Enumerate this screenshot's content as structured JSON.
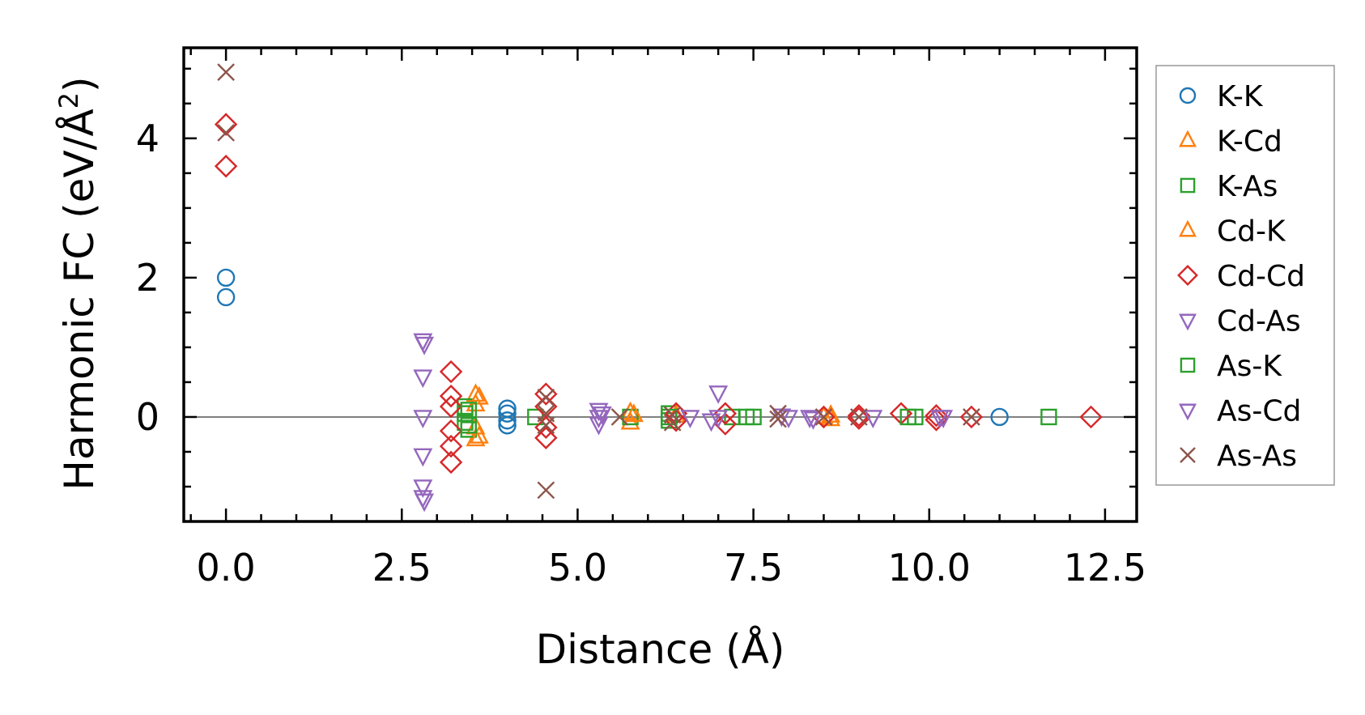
{
  "chart_data": {
    "type": "scatter",
    "title": "",
    "xlabel": "Distance (Å)",
    "ylabel_main": "Harmonic FC (eV/Å",
    "ylabel_sup": "2",
    "ylabel_close": ")",
    "xlim": [
      -0.6,
      12.95
    ],
    "ylim": [
      -1.5,
      5.3
    ],
    "xticks": [
      0.0,
      2.5,
      5.0,
      7.5,
      10.0,
      12.5
    ],
    "xtick_labels": [
      "0.0",
      "2.5",
      "5.0",
      "7.5",
      "10.0",
      "12.5"
    ],
    "yticks": [
      0,
      2,
      4
    ],
    "ytick_labels": [
      "0",
      "2",
      "4"
    ],
    "x_minor_step": 0.5,
    "y_minor_step": 0.5,
    "zero_line": true,
    "legend_position": "right-outside",
    "colors": {
      "blue": "#1f77b4",
      "orange": "#ff7f0e",
      "green": "#2ca02c",
      "red": "#d62728",
      "purple": "#9467bd",
      "brown": "#8c564b",
      "zero_line": "#808080"
    },
    "series": [
      {
        "name": "K-K",
        "marker": "circle",
        "color": "#1f77b4",
        "points": [
          [
            0,
            2.0
          ],
          [
            0,
            1.72
          ],
          [
            4.0,
            0.12
          ],
          [
            4.0,
            0.05
          ],
          [
            4.0,
            -0.05
          ],
          [
            4.0,
            -0.12
          ],
          [
            11.0,
            0.0
          ]
        ]
      },
      {
        "name": "K-Cd",
        "marker": "triangle-up",
        "color": "#ff7f0e",
        "points": [
          [
            3.55,
            0.32
          ],
          [
            3.55,
            0.18
          ],
          [
            3.55,
            -0.15
          ],
          [
            3.55,
            -0.32
          ],
          [
            5.75,
            0.06
          ],
          [
            5.75,
            -0.08
          ],
          [
            8.6,
            0.02
          ],
          [
            8.6,
            -0.03
          ]
        ]
      },
      {
        "name": "K-As",
        "marker": "square",
        "color": "#2ca02c",
        "points": [
          [
            3.4,
            0.15
          ],
          [
            3.4,
            0.05
          ],
          [
            3.4,
            -0.08
          ],
          [
            3.45,
            -0.18
          ],
          [
            4.4,
            0.0
          ],
          [
            5.75,
            0.0
          ],
          [
            6.3,
            0.05
          ],
          [
            6.3,
            -0.05
          ],
          [
            7.2,
            0.0
          ],
          [
            7.5,
            0.0
          ],
          [
            9.8,
            0.0
          ],
          [
            11.7,
            0.0
          ]
        ]
      },
      {
        "name": "Cd-K",
        "marker": "triangle-up",
        "color": "#ff7f0e",
        "points": [
          [
            3.6,
            0.28
          ],
          [
            3.6,
            -0.28
          ],
          [
            5.8,
            0.03
          ],
          [
            6.4,
            0.02
          ],
          [
            8.5,
            0.0
          ]
        ]
      },
      {
        "name": "Cd-Cd",
        "marker": "diamond",
        "color": "#d62728",
        "points": [
          [
            0,
            4.2
          ],
          [
            0,
            3.6
          ],
          [
            3.2,
            0.65
          ],
          [
            3.2,
            0.3
          ],
          [
            3.2,
            0.15
          ],
          [
            3.2,
            -0.2
          ],
          [
            3.2,
            -0.42
          ],
          [
            3.2,
            -0.65
          ],
          [
            4.55,
            0.33
          ],
          [
            4.55,
            0.15
          ],
          [
            4.55,
            -0.15
          ],
          [
            4.55,
            -0.3
          ],
          [
            6.4,
            0.05
          ],
          [
            6.4,
            -0.05
          ],
          [
            7.1,
            0.05
          ],
          [
            7.1,
            -0.1
          ],
          [
            8.5,
            0.0
          ],
          [
            9.0,
            0.02
          ],
          [
            9.0,
            -0.02
          ],
          [
            9.6,
            0.05
          ],
          [
            10.1,
            0.02
          ],
          [
            10.1,
            -0.04
          ],
          [
            10.6,
            0.0
          ],
          [
            12.3,
            0.0
          ]
        ]
      },
      {
        "name": "Cd-As",
        "marker": "triangle-down",
        "color": "#9467bd",
        "points": [
          [
            2.8,
            1.1
          ],
          [
            2.8,
            0.58
          ],
          [
            2.8,
            0.0
          ],
          [
            2.8,
            -0.55
          ],
          [
            2.8,
            -1.0
          ],
          [
            2.8,
            -1.15
          ],
          [
            5.3,
            0.1
          ],
          [
            5.3,
            0.0
          ],
          [
            5.3,
            -0.1
          ],
          [
            6.6,
            0.0
          ],
          [
            7.0,
            0.35
          ],
          [
            7.0,
            0.0
          ],
          [
            8.0,
            0.0
          ],
          [
            8.3,
            0.0
          ],
          [
            9.2,
            0.0
          ],
          [
            10.2,
            0.0
          ]
        ]
      },
      {
        "name": "As-K",
        "marker": "square",
        "color": "#2ca02c",
        "points": [
          [
            3.45,
            0.1
          ],
          [
            3.45,
            -0.12
          ],
          [
            6.3,
            0.0
          ],
          [
            7.4,
            0.0
          ],
          [
            9.7,
            0.0
          ]
        ]
      },
      {
        "name": "As-Cd",
        "marker": "triangle-down",
        "color": "#9467bd",
        "points": [
          [
            2.82,
            1.05
          ],
          [
            2.82,
            -1.2
          ],
          [
            5.35,
            0.05
          ],
          [
            6.9,
            -0.05
          ],
          [
            7.9,
            0.02
          ],
          [
            8.35,
            -0.02
          ],
          [
            10.15,
            0.0
          ]
        ]
      },
      {
        "name": "As-As",
        "marker": "x",
        "color": "#8c564b",
        "points": [
          [
            0,
            4.95
          ],
          [
            0,
            4.08
          ],
          [
            4.55,
            0.28
          ],
          [
            4.55,
            0.05
          ],
          [
            4.55,
            -0.12
          ],
          [
            4.55,
            -1.05
          ],
          [
            5.6,
            0.0
          ],
          [
            6.35,
            0.03
          ],
          [
            6.35,
            -0.08
          ],
          [
            7.85,
            0.05
          ],
          [
            7.85,
            -0.03
          ],
          [
            8.5,
            0.0
          ],
          [
            9.0,
            0.0
          ],
          [
            10.6,
            0.0
          ]
        ]
      }
    ]
  }
}
